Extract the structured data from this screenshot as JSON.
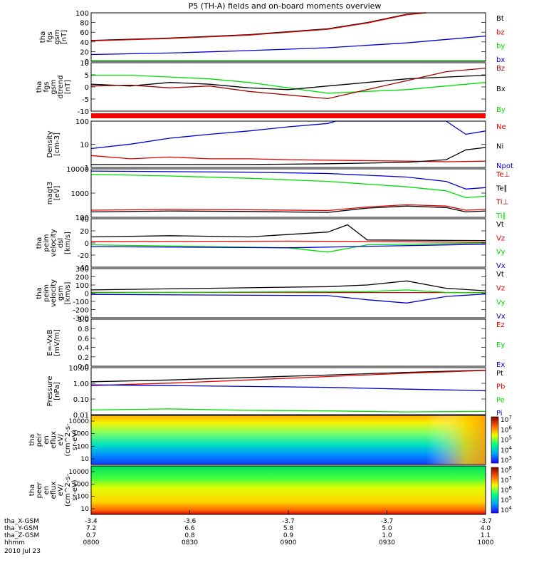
{
  "title": "P5 (TH-A) fields and on-board moments overview",
  "colors": {
    "black": "#000000",
    "red": "#e00000",
    "blue": "#0000d0",
    "green": "#00dd00",
    "darkred": "#a00000"
  },
  "chart_data": [
    {
      "type": "line",
      "ylabel": [
        "tha",
        "fgs",
        "gsm",
        "[nT]"
      ],
      "ylim": [
        0,
        100
      ],
      "yticks": [
        "100",
        "80",
        "60",
        "40",
        "20",
        "0"
      ],
      "legend": [
        {
          "name": "Bt",
          "color": "black"
        },
        {
          "name": "bz",
          "color": "red"
        },
        {
          "name": "by",
          "color": "green"
        },
        {
          "name": "bx",
          "color": "blue"
        }
      ],
      "series": [
        {
          "name": "Bt",
          "color": "black",
          "x": [
            0,
            0.2,
            0.4,
            0.6,
            0.7,
            0.8,
            0.85
          ],
          "y": [
            43,
            48,
            55,
            67,
            80,
            97,
            103
          ]
        },
        {
          "name": "bz",
          "color": "red",
          "x": [
            0,
            0.2,
            0.4,
            0.6,
            0.7,
            0.8,
            0.85
          ],
          "y": [
            42,
            47,
            54,
            66,
            79,
            96,
            102
          ]
        },
        {
          "name": "by",
          "color": "green",
          "x": [
            0,
            1
          ],
          "y": [
            1,
            1
          ]
        },
        {
          "name": "bx",
          "color": "blue",
          "x": [
            0,
            0.2,
            0.4,
            0.6,
            0.8,
            1
          ],
          "y": [
            14,
            17,
            22,
            28,
            38,
            52
          ]
        }
      ]
    },
    {
      "type": "line",
      "ylabel": [
        "tha",
        "fgs",
        "gsm",
        "dtrend",
        "[nT]"
      ],
      "ylim": [
        -15,
        12
      ],
      "yticks": [
        "10",
        "5",
        "0",
        "-5",
        "-10"
      ],
      "legend": [
        {
          "name": "Bz",
          "color": "darkred"
        },
        {
          "name": "Bx",
          "color": "black"
        },
        {
          "name": "By",
          "color": "green"
        }
      ],
      "series": [
        {
          "name": "By",
          "color": "green",
          "x": [
            0,
            0.1,
            0.2,
            0.3,
            0.4,
            0.5,
            0.6,
            0.7,
            0.8,
            0.9,
            1
          ],
          "y": [
            5,
            5,
            4,
            3,
            1,
            -2,
            -5,
            -4,
            -3,
            -1,
            1
          ]
        },
        {
          "name": "Bx",
          "color": "black",
          "x": [
            0,
            0.1,
            0.2,
            0.3,
            0.4,
            0.5,
            0.6,
            0.7,
            0.8,
            0.9,
            1
          ],
          "y": [
            0,
            -1,
            1,
            0,
            -2,
            -3,
            -1,
            1,
            3,
            4,
            5
          ]
        },
        {
          "name": "Bz",
          "color": "darkred",
          "x": [
            0,
            0.1,
            0.2,
            0.3,
            0.4,
            0.5,
            0.6,
            0.7,
            0.8,
            0.9,
            1
          ],
          "y": [
            -1,
            -0.5,
            -2,
            -1,
            -4,
            -6,
            -8,
            -3,
            2,
            7,
            9
          ]
        }
      ]
    },
    {
      "type": "line",
      "ylabel": [
        "Density",
        "[cm-3]"
      ],
      "ylim": [
        0.7,
        200
      ],
      "yscale": "log",
      "yticks": [
        "100",
        "10",
        "1"
      ],
      "legend": [
        {
          "name": "Ne",
          "color": "red"
        },
        {
          "name": "Ni",
          "color": "black"
        },
        {
          "name": "Npot",
          "color": "blue"
        }
      ],
      "series": [
        {
          "name": "Npot",
          "color": "blue",
          "x": [
            0,
            0.1,
            0.2,
            0.3,
            0.4,
            0.5,
            0.6,
            0.62,
            0.9,
            0.95,
            1
          ],
          "y": [
            7,
            12,
            25,
            40,
            60,
            100,
            150,
            200,
            200,
            40,
            60
          ]
        },
        {
          "name": "Ne",
          "color": "red",
          "x": [
            0,
            0.1,
            0.2,
            0.3,
            0.4,
            0.5,
            0.6,
            0.7,
            0.8,
            0.9,
            1
          ],
          "y": [
            3,
            2,
            2.5,
            2,
            2,
            1.8,
            1.7,
            1.6,
            1.5,
            1.4,
            1.5
          ]
        },
        {
          "name": "Ni",
          "color": "black",
          "x": [
            0,
            0.2,
            0.4,
            0.6,
            0.8,
            0.9,
            0.95,
            1
          ],
          "y": [
            1,
            1,
            1,
            1.1,
            1.3,
            1.8,
            6,
            8
          ]
        }
      ]
    },
    {
      "type": "line",
      "ylabel": [
        "magt3",
        "[eV]"
      ],
      "ylim": [
        40,
        20000
      ],
      "yscale": "log",
      "yticks": [
        "10000",
        "1000",
        "100"
      ],
      "legend": [
        {
          "name": "Te⊥",
          "color": "red"
        },
        {
          "name": "Te∥",
          "color": "black"
        },
        {
          "name": "Ti⊥",
          "color": "darkred"
        },
        {
          "name": "Ti∥",
          "color": "green"
        }
      ],
      "series": [
        {
          "name": "Ti⊥",
          "color": "blue",
          "x": [
            0,
            0.2,
            0.4,
            0.6,
            0.8,
            0.9,
            0.95,
            1
          ],
          "y": [
            15000,
            14000,
            13000,
            11000,
            7000,
            4000,
            1500,
            1800
          ]
        },
        {
          "name": "Ti∥",
          "color": "green",
          "x": [
            0,
            0.2,
            0.4,
            0.6,
            0.8,
            0.9,
            0.95,
            1
          ],
          "y": [
            10000,
            8000,
            6000,
            4000,
            2000,
            1200,
            500,
            600
          ]
        },
        {
          "name": "Te⊥",
          "color": "red",
          "x": [
            0,
            0.2,
            0.4,
            0.6,
            0.7,
            0.8,
            0.9,
            0.95,
            1
          ],
          "y": [
            100,
            110,
            105,
            95,
            150,
            200,
            170,
            100,
            110
          ]
        },
        {
          "name": "Te∥",
          "color": "black",
          "x": [
            0,
            0.2,
            0.4,
            0.6,
            0.7,
            0.8,
            0.9,
            0.95,
            1
          ],
          "y": [
            80,
            90,
            85,
            75,
            130,
            170,
            140,
            80,
            90
          ]
        }
      ]
    },
    {
      "type": "line",
      "ylabel": [
        "tha",
        "peim",
        "velocity",
        "dsl",
        "[km/s]"
      ],
      "ylim": [
        -40,
        40
      ],
      "yticks": [
        "40",
        "20",
        "0",
        "-20",
        "-40"
      ],
      "legend": [
        {
          "name": "Vt",
          "color": "black"
        },
        {
          "name": "Vz",
          "color": "red"
        },
        {
          "name": "Vy",
          "color": "green"
        },
        {
          "name": "Vx",
          "color": "blue"
        }
      ],
      "series": [
        {
          "name": "Vt",
          "color": "black",
          "x": [
            0,
            0.2,
            0.4,
            0.6,
            0.65,
            0.7,
            1
          ],
          "y": [
            10,
            12,
            10,
            18,
            30,
            5,
            4
          ]
        },
        {
          "name": "Vz",
          "color": "red",
          "x": [
            0,
            0.5,
            1
          ],
          "y": [
            2,
            3,
            1
          ]
        },
        {
          "name": "Vy",
          "color": "green",
          "x": [
            0,
            0.5,
            0.6,
            0.7,
            1
          ],
          "y": [
            -3,
            -8,
            -15,
            -3,
            0
          ]
        },
        {
          "name": "Vx",
          "color": "blue",
          "x": [
            0,
            0.5,
            1
          ],
          "y": [
            -6,
            -8,
            -2
          ]
        }
      ]
    },
    {
      "type": "line",
      "ylabel": [
        "tha",
        "peim",
        "velocity",
        "gsm",
        "[km/s]"
      ],
      "ylim": [
        -300,
        300
      ],
      "yticks": [
        "300",
        "200",
        "100",
        "0",
        "-100",
        "-200",
        "-300"
      ],
      "legend": [
        {
          "name": "Vt",
          "color": "black"
        },
        {
          "name": "Vz",
          "color": "red"
        },
        {
          "name": "Vy",
          "color": "green"
        },
        {
          "name": "Vx",
          "color": "blue"
        }
      ],
      "series": [
        {
          "name": "Vt",
          "color": "black",
          "x": [
            0,
            0.3,
            0.6,
            0.7,
            0.8,
            0.9,
            1
          ],
          "y": [
            40,
            60,
            80,
            100,
            150,
            60,
            30
          ]
        },
        {
          "name": "Vz",
          "color": "red",
          "x": [
            0,
            1
          ],
          "y": [
            10,
            8
          ]
        },
        {
          "name": "Vy",
          "color": "green",
          "x": [
            0,
            0.7,
            0.8,
            0.9,
            1
          ],
          "y": [
            5,
            20,
            40,
            10,
            5
          ]
        },
        {
          "name": "Vx",
          "color": "blue",
          "x": [
            0,
            0.6,
            0.7,
            0.8,
            0.9,
            1
          ],
          "y": [
            -15,
            -30,
            -80,
            -120,
            -40,
            -10
          ]
        }
      ]
    },
    {
      "type": "line",
      "ylabel": [
        "E=-VxB",
        "[mV/m]"
      ],
      "ylim": [
        0,
        1
      ],
      "yticks": [
        "1.0",
        "0.8",
        "0.6",
        "0.4",
        "0.2",
        "0.0"
      ],
      "legend": [
        {
          "name": "Ez",
          "color": "red"
        },
        {
          "name": "Ey",
          "color": "green"
        },
        {
          "name": "Ex",
          "color": "blue"
        }
      ],
      "series": []
    },
    {
      "type": "line",
      "ylabel": [
        "Pressure",
        "[nPa]"
      ],
      "ylim": [
        0.007,
        15
      ],
      "yscale": "log",
      "yticks": [
        "10.00",
        "1.00",
        "0.10",
        "0.01"
      ],
      "legend": [
        {
          "name": "Pt",
          "color": "black"
        },
        {
          "name": "Pb",
          "color": "red"
        },
        {
          "name": "Pe",
          "color": "green"
        },
        {
          "name": "Pi",
          "color": "blue"
        }
      ],
      "series": [
        {
          "name": "Pt",
          "color": "black",
          "x": [
            0,
            0.2,
            0.4,
            0.6,
            0.8,
            1
          ],
          "y": [
            1.5,
            2,
            3,
            4.5,
            7,
            10
          ]
        },
        {
          "name": "Pb",
          "color": "red",
          "x": [
            0,
            0.2,
            0.4,
            0.6,
            0.8,
            1
          ],
          "y": [
            0.8,
            1.2,
            2,
            3.5,
            6,
            9.5
          ]
        },
        {
          "name": "Pi",
          "color": "blue",
          "x": [
            0,
            0.2,
            0.4,
            0.6,
            0.8,
            1
          ],
          "y": [
            0.9,
            0.8,
            0.7,
            0.6,
            0.45,
            0.35
          ]
        },
        {
          "name": "Pe",
          "color": "green",
          "x": [
            0,
            0.2,
            0.4,
            0.6,
            0.8,
            1
          ],
          "y": [
            0.015,
            0.018,
            0.014,
            0.013,
            0.011,
            0.012
          ]
        }
      ]
    },
    {
      "type": "heatmap",
      "ylabel": [
        "tha",
        "peir",
        "en",
        "eflux",
        "eV/",
        "(cm^2-s-",
        "sr-eV)"
      ],
      "yticks": [
        "10000",
        "1000",
        "100",
        "10"
      ],
      "colorbar": {
        "ticks": [
          "10^7",
          "10^6",
          "10^5",
          "10^4",
          "10^3"
        ]
      }
    },
    {
      "type": "heatmap",
      "ylabel": [
        "tha",
        "peer",
        "en",
        "eflux",
        "eV/",
        "(cm^2-s-",
        "sr-eV)"
      ],
      "yticks": [
        "10000",
        "1000",
        "100",
        "10"
      ],
      "colorbar": {
        "ticks": [
          "10^8",
          "10^7",
          "10^6",
          "10^5",
          "10^4"
        ]
      }
    }
  ],
  "xaxis": {
    "rows": [
      {
        "label": "tha_X-GSM",
        "values": [
          "-3.4",
          "-3.6",
          "-3.7",
          "-3.7",
          "-3.7"
        ]
      },
      {
        "label": "tha_Y-GSM",
        "values": [
          "7.2",
          "6.6",
          "5.8",
          "5.0",
          "4.0"
        ]
      },
      {
        "label": "tha_Z-GSM",
        "values": [
          "0.7",
          "0.8",
          "0.9",
          "1.0",
          "1.1"
        ]
      },
      {
        "label": "hhmm",
        "values": [
          "0800",
          "0830",
          "0900",
          "0930",
          "1000"
        ]
      }
    ],
    "date": "2010 Jul 23"
  }
}
